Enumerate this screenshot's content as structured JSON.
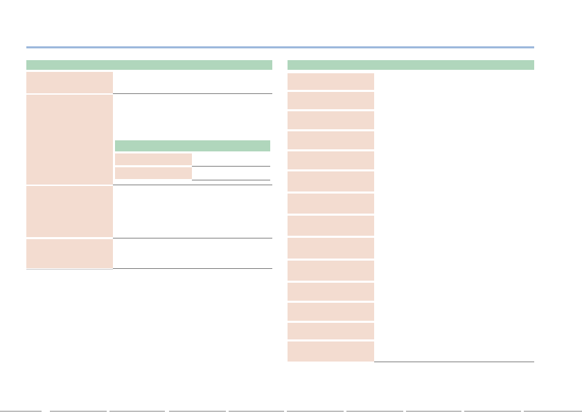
{
  "page": {
    "left_table": {
      "header": "",
      "rows": [
        {
          "label": "",
          "description": ""
        },
        {
          "label": "",
          "description": "",
          "subtable": {
            "header": "",
            "rows": [
              {
                "label": "",
                "value": ""
              },
              {
                "label": "",
                "value": ""
              }
            ]
          }
        },
        {
          "label": "",
          "description": ""
        },
        {
          "label": "",
          "description": ""
        }
      ]
    },
    "right_table": {
      "header": "",
      "rows": [
        {
          "label": "",
          "description": ""
        },
        {
          "label": "",
          "description": ""
        },
        {
          "label": "",
          "description": ""
        },
        {
          "label": "",
          "description": ""
        },
        {
          "label": "",
          "description": ""
        },
        {
          "label": "",
          "description": ""
        },
        {
          "label": "",
          "description": ""
        },
        {
          "label": "",
          "description": ""
        },
        {
          "label": "",
          "description": ""
        },
        {
          "label": "",
          "description": ""
        },
        {
          "label": "",
          "description": ""
        },
        {
          "label": "",
          "description": ""
        },
        {
          "label": "",
          "description": ""
        },
        {
          "label": "",
          "description": ""
        }
      ]
    },
    "colors": {
      "rule_accent": "#9db8dc",
      "header_green": "#b0d6bc",
      "label_peach": "#f3dcd0"
    }
  }
}
